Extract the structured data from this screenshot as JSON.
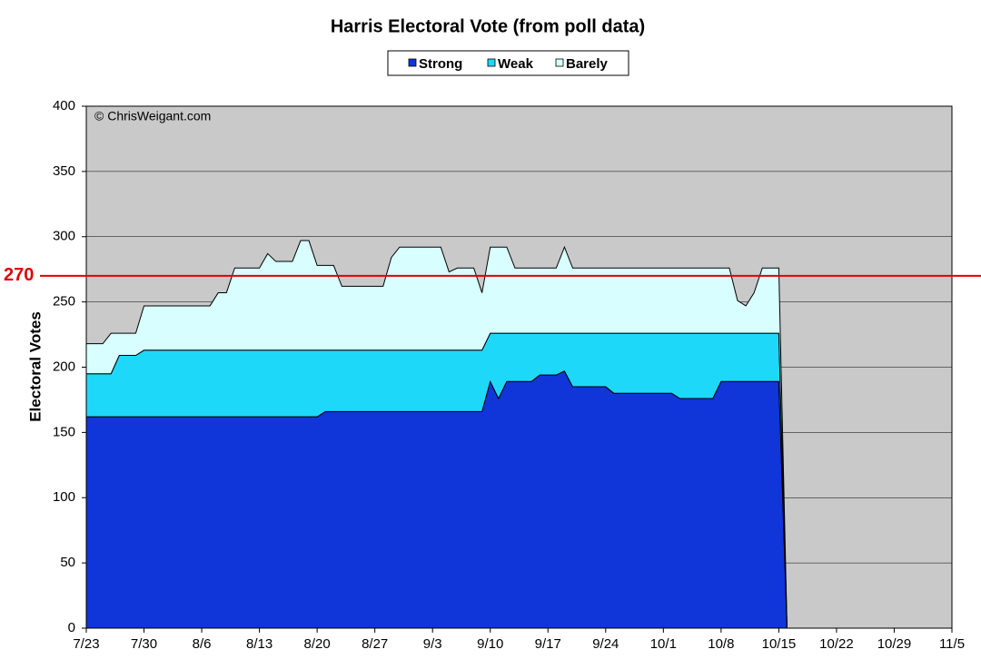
{
  "chart_data": {
    "type": "stacked-area",
    "title": "Harris Electoral Vote (from poll data)",
    "y_label": "Electoral Votes",
    "annotation": "© ChrisWeigant.com",
    "reference_line": {
      "value": 270,
      "label": "270",
      "color": "#e00000"
    },
    "x": [
      "7/23",
      "7/24",
      "7/25",
      "7/26",
      "7/27",
      "7/28",
      "7/29",
      "7/30",
      "7/31",
      "8/1",
      "8/2",
      "8/3",
      "8/4",
      "8/5",
      "8/6",
      "8/7",
      "8/8",
      "8/9",
      "8/10",
      "8/11",
      "8/12",
      "8/13",
      "8/14",
      "8/15",
      "8/16",
      "8/17",
      "8/18",
      "8/19",
      "8/20",
      "8/21",
      "8/22",
      "8/23",
      "8/24",
      "8/25",
      "8/26",
      "8/27",
      "8/28",
      "8/29",
      "8/30",
      "8/31",
      "9/1",
      "9/2",
      "9/3",
      "9/4",
      "9/5",
      "9/6",
      "9/7",
      "9/8",
      "9/9",
      "9/10",
      "9/11",
      "9/12",
      "9/13",
      "9/14",
      "9/15",
      "9/16",
      "9/17",
      "9/18",
      "9/19",
      "9/20",
      "9/21",
      "9/22",
      "9/23",
      "9/24",
      "9/25",
      "9/26",
      "9/27",
      "9/28",
      "9/29",
      "9/30",
      "10/1",
      "10/2",
      "10/3",
      "10/4",
      "10/5",
      "10/6",
      "10/7",
      "10/8",
      "10/9",
      "10/10",
      "10/11",
      "10/12",
      "10/13",
      "10/14",
      "10/15",
      "10/16"
    ],
    "series": [
      {
        "name": "Strong",
        "color": "#1035d9",
        "values": [
          162,
          162,
          162,
          162,
          162,
          162,
          162,
          162,
          162,
          162,
          162,
          162,
          162,
          162,
          162,
          162,
          162,
          162,
          162,
          162,
          162,
          162,
          162,
          162,
          162,
          162,
          162,
          162,
          162,
          166,
          166,
          166,
          166,
          166,
          166,
          166,
          166,
          166,
          166,
          166,
          166,
          166,
          166,
          166,
          166,
          166,
          166,
          166,
          166,
          189,
          176,
          189,
          189,
          189,
          189,
          194,
          194,
          194,
          197,
          185,
          185,
          185,
          185,
          185,
          180,
          180,
          180,
          180,
          180,
          180,
          180,
          180,
          176,
          176,
          176,
          176,
          176,
          189,
          189,
          189,
          189,
          189,
          189,
          189,
          189,
          0
        ]
      },
      {
        "name": "Weak",
        "color": "#1ed8fa",
        "values": [
          33,
          33,
          33,
          33,
          47,
          47,
          47,
          51,
          51,
          51,
          51,
          51,
          51,
          51,
          51,
          51,
          51,
          51,
          51,
          51,
          51,
          51,
          51,
          51,
          51,
          51,
          51,
          51,
          51,
          47,
          47,
          47,
          47,
          47,
          47,
          47,
          47,
          47,
          47,
          47,
          47,
          47,
          47,
          47,
          47,
          47,
          47,
          47,
          47,
          37,
          50,
          37,
          37,
          37,
          37,
          32,
          32,
          32,
          29,
          41,
          41,
          41,
          41,
          41,
          46,
          46,
          46,
          46,
          46,
          46,
          46,
          46,
          50,
          50,
          50,
          50,
          50,
          37,
          37,
          37,
          37,
          37,
          37,
          37,
          37,
          0
        ]
      },
      {
        "name": "Barely",
        "color": "#d8feff",
        "values": [
          23,
          23,
          23,
          31,
          17,
          17,
          17,
          34,
          34,
          34,
          34,
          34,
          34,
          34,
          34,
          34,
          44,
          44,
          63,
          63,
          63,
          63,
          74,
          68,
          68,
          68,
          84,
          84,
          65,
          65,
          65,
          49,
          49,
          49,
          49,
          49,
          49,
          71,
          79,
          79,
          79,
          79,
          79,
          79,
          60,
          63,
          63,
          63,
          44,
          66,
          66,
          66,
          50,
          50,
          50,
          50,
          50,
          50,
          66,
          50,
          50,
          50,
          50,
          50,
          50,
          50,
          50,
          50,
          50,
          50,
          50,
          50,
          50,
          50,
          50,
          50,
          50,
          50,
          50,
          25,
          21,
          31,
          50,
          50,
          50,
          0
        ]
      }
    ],
    "xlim": [
      "7/23",
      "11/5"
    ],
    "xticks": [
      "7/23",
      "7/30",
      "8/6",
      "8/13",
      "8/20",
      "8/27",
      "9/3",
      "9/10",
      "9/17",
      "9/24",
      "10/1",
      "10/8",
      "10/15",
      "10/22",
      "10/29",
      "11/5"
    ],
    "ylim": [
      0,
      400
    ],
    "yticks": [
      0,
      50,
      100,
      150,
      200,
      250,
      300,
      350,
      400
    ],
    "grid": true,
    "plot_background": "#c9c9c9",
    "legend": "top"
  }
}
